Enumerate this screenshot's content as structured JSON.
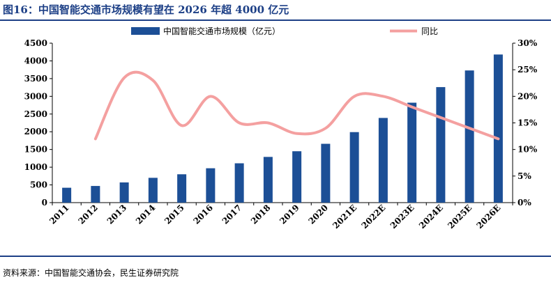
{
  "header": {
    "title": "图16：中国智能交通市场规模有望在 2026 年超 4000 亿元"
  },
  "footer": {
    "source": "资料来源：中国智能交通协会，民生证券研究院"
  },
  "colors": {
    "bar": "#1c4f96",
    "line": "#f4a0a0",
    "title": "#1c3f86",
    "rule": "#1c3f86"
  },
  "chart_data": {
    "type": "bar",
    "title": "",
    "xlabel": "",
    "ylabel": "",
    "y2label": "",
    "categories": [
      "2011",
      "2012",
      "2013",
      "2014",
      "2015",
      "2016",
      "2017",
      "2018",
      "2019",
      "2020",
      "2021E",
      "2022E",
      "2023E",
      "2024E",
      "2025E",
      "2026E"
    ],
    "ylim": [
      0,
      4500
    ],
    "y_ticks": [
      0,
      500,
      1000,
      1500,
      2000,
      2500,
      3000,
      3500,
      4000,
      4500
    ],
    "y2lim": [
      0,
      30
    ],
    "y2_ticks": [
      "0%",
      "5%",
      "10%",
      "15%",
      "20%",
      "25%",
      "30%"
    ],
    "legend_position": "top",
    "grid": false,
    "series": [
      {
        "name": "中国智能交通市场规模（亿元）",
        "type": "bar",
        "axis": "left",
        "values": [
          420,
          470,
          570,
          700,
          800,
          970,
          1110,
          1290,
          1450,
          1660,
          1990,
          2390,
          2820,
          3260,
          3730,
          4180
        ]
      },
      {
        "name": "同比",
        "type": "line",
        "axis": "right",
        "unit": "%",
        "values": [
          null,
          12,
          23.5,
          23,
          14.5,
          20,
          15,
          15,
          13,
          14,
          20,
          20,
          18,
          16,
          14,
          12
        ]
      }
    ]
  }
}
